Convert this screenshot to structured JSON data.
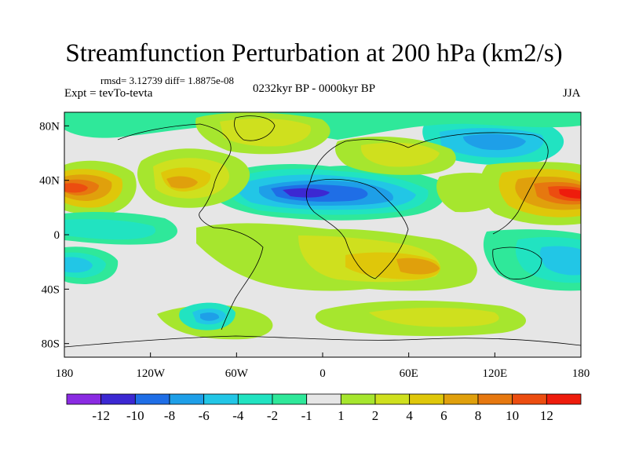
{
  "figure": {
    "title": "Streamfunction Perturbation at 200 hPa (km2/s)",
    "stats": "rmsd= 3.12739 diff= 1.8875e-08",
    "left_label": "Expt = tevTo-tevta",
    "center_label": "0232kyr BP - 0000kyr BP",
    "right_label": "JJA"
  },
  "axes": {
    "lon_ticks": [
      {
        "value": -180,
        "label": "180"
      },
      {
        "value": -120,
        "label": "120W"
      },
      {
        "value": -60,
        "label": "60W"
      },
      {
        "value": 0,
        "label": "0"
      },
      {
        "value": 60,
        "label": "60E"
      },
      {
        "value": 120,
        "label": "120E"
      },
      {
        "value": 180,
        "label": "180"
      }
    ],
    "lat_ticks": [
      {
        "value": 80,
        "label": "80N"
      },
      {
        "value": 40,
        "label": "40N"
      },
      {
        "value": 0,
        "label": "0"
      },
      {
        "value": -40,
        "label": "40S"
      },
      {
        "value": -80,
        "label": "80S"
      }
    ]
  },
  "colorbar": {
    "colors": [
      "#8a2be2",
      "#3c28d2",
      "#1f6ee6",
      "#1e9fe8",
      "#22c6e6",
      "#21e3c1",
      "#2fe89a",
      "#e6e6e6",
      "#a6e62e",
      "#cfe01e",
      "#dfc70a",
      "#e0a00c",
      "#e6780f",
      "#ec4d10",
      "#ee1c0c"
    ],
    "labels": [
      "-12",
      "-10",
      "-8",
      "-6",
      "-4",
      "-2",
      "-1",
      "1",
      "2",
      "4",
      "6",
      "8",
      "10",
      "12"
    ]
  },
  "map_colors": {
    "neutral": "#e6e6e6",
    "coast": "#000000"
  }
}
